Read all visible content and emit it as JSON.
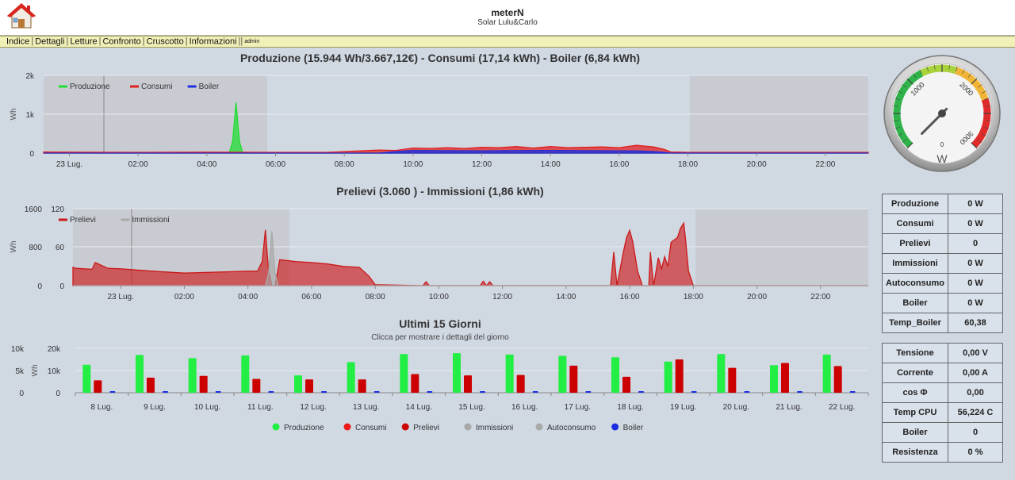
{
  "header": {
    "title": "meterN",
    "subtitle": "Solar Lulu&Carlo"
  },
  "menu": {
    "items": [
      "Indice",
      "Dettagli",
      "Letture",
      "Confronto",
      "Cruscotto",
      "Informazioni"
    ],
    "admin": "admin"
  },
  "chart1": {
    "title": "Produzione (15.944 Wh/3.667,12€) - Consumi (17,14 kWh) - Boiler (6,84 kWh)",
    "ylabel": "Wh",
    "yticks": [
      "2k",
      "1k",
      "0"
    ],
    "xticks": [
      "23 Lug.",
      "02:00",
      "04:00",
      "06:00",
      "08:00",
      "10:00",
      "12:00",
      "14:00",
      "16:00",
      "18:00",
      "20:00",
      "22:00"
    ],
    "legend": [
      {
        "name": "Produzione",
        "color": "#22dd33"
      },
      {
        "name": "Consumi",
        "color": "#e02020"
      },
      {
        "name": "Boiler",
        "color": "#2030e0"
      }
    ]
  },
  "chart2": {
    "title": "Prelievi (3.060 ) - Immissioni (1,86 kWh)",
    "ylabel": "Wh",
    "yticks_left": [
      "1600",
      "800",
      "0"
    ],
    "yticks_right": [
      "120",
      "60",
      "0"
    ],
    "xticks": [
      "23 Lug.",
      "02:00",
      "04:00",
      "06:00",
      "08:00",
      "10:00",
      "12:00",
      "14:00",
      "16:00",
      "18:00",
      "20:00",
      "22:00"
    ],
    "legend": [
      {
        "name": "Prelievi",
        "color": "#cc1a1a"
      },
      {
        "name": "Immissioni",
        "color": "#a8a8a8"
      }
    ]
  },
  "chart3": {
    "title": "Ultimi 15 Giorni",
    "subtitle": "Clicca per mostrare i dettagli del giorno",
    "ylabel": "Wh",
    "yticks_left": [
      "10k",
      "5k",
      "0"
    ],
    "yticks_right": [
      "20k",
      "10k",
      "0"
    ],
    "legend": [
      {
        "name": "Produzione",
        "color": "#22ee44"
      },
      {
        "name": "Consumi",
        "color": "#ee1a1a"
      },
      {
        "name": "Prelievi",
        "color": "#cc0000"
      },
      {
        "name": "Immissioni",
        "color": "#a8a8a8"
      },
      {
        "name": "Autoconsumo",
        "color": "#a8a8a8"
      },
      {
        "name": "Boiler",
        "color": "#1a2ee0"
      }
    ]
  },
  "chart_data": [
    {
      "type": "area",
      "title": "Produzione (15.944 Wh/3.667,12€) - Consumi (17,14 kWh) - Boiler (6,84 kWh)",
      "ylabel": "Wh",
      "ylim": [
        0,
        2000
      ],
      "xlim": [
        -0.75,
        23.25
      ],
      "series": [
        {
          "name": "Produzione",
          "color": "#22dd33",
          "x": [
            -0.75,
            4.65,
            4.75,
            4.85,
            4.95,
            5.05,
            23.25
          ],
          "values": [
            0,
            0,
            300,
            1300,
            300,
            0,
            0
          ]
        },
        {
          "name": "Consumi",
          "color": "#e02020",
          "x": [
            -0.75,
            0,
            2,
            4,
            6,
            7.5,
            8,
            9,
            9.5,
            10,
            10.5,
            11,
            11.5,
            12,
            12.5,
            13,
            13.5,
            14,
            14.5,
            15,
            15.5,
            16,
            16.5,
            17,
            17.3,
            17.5,
            18,
            23.25
          ],
          "values": [
            30,
            25,
            20,
            25,
            20,
            20,
            40,
            80,
            70,
            130,
            120,
            140,
            120,
            150,
            140,
            170,
            130,
            170,
            140,
            150,
            160,
            140,
            200,
            160,
            100,
            30,
            20,
            20
          ]
        },
        {
          "name": "Boiler",
          "color": "#2030e0",
          "x": [
            -0.75,
            9,
            9.5,
            10,
            12,
            14,
            16,
            16.5,
            17,
            17.3,
            17.5,
            23.25
          ],
          "values": [
            0,
            0,
            40,
            70,
            60,
            70,
            60,
            60,
            40,
            20,
            0,
            0
          ]
        }
      ],
      "xticks": [
        "23 Lug.",
        "02:00",
        "04:00",
        "06:00",
        "08:00",
        "10:00",
        "12:00",
        "14:00",
        "16:00",
        "18:00",
        "20:00",
        "22:00"
      ]
    },
    {
      "type": "area",
      "title": "Prelievi (3.060 ) - Immissioni (1,86 kWh)",
      "ylabel": "Wh",
      "ylim": [
        0,
        1600
      ],
      "ylim_right": [
        0,
        120
      ],
      "xlim": [
        -1.5,
        23.5
      ],
      "series": [
        {
          "name": "Prelievi",
          "color": "#cc1a1a",
          "x": [
            -1.5,
            -1.4,
            -0.9,
            -0.8,
            -0.4,
            0,
            1,
            2,
            3,
            4,
            4.3,
            4.45,
            4.55,
            4.65,
            4.75,
            4.85,
            5,
            5.5,
            6,
            6.5,
            7,
            7.5,
            7.8,
            8,
            9.5,
            9.6,
            9.7,
            11.3,
            11.4,
            11.5,
            11.6,
            11.7,
            12.5,
            15.4,
            15.5,
            15.6,
            15.8,
            15.9,
            16,
            16.1,
            16.25,
            16.4,
            16.6,
            16.65,
            16.75,
            16.9,
            17,
            17.1,
            17.2,
            17.3,
            17.5,
            17.6,
            17.7,
            17.75,
            17.85,
            18,
            18.1,
            23.5
          ],
          "values": [
            380,
            360,
            340,
            480,
            360,
            350,
            300,
            260,
            280,
            300,
            300,
            500,
            1160,
            300,
            0,
            0,
            540,
            500,
            480,
            450,
            400,
            380,
            200,
            20,
            0,
            80,
            0,
            0,
            90,
            0,
            80,
            0,
            0,
            0,
            700,
            0,
            700,
            1000,
            1150,
            900,
            300,
            0,
            0,
            700,
            0,
            580,
            350,
            600,
            400,
            900,
            1000,
            1200,
            1300,
            1000,
            300,
            0,
            0,
            0
          ]
        },
        {
          "name": "Immissioni",
          "color": "#a8a8a8",
          "x": [
            -1.5,
            4.55,
            4.65,
            4.75,
            4.85,
            4.95,
            23.5
          ],
          "values": [
            0,
            0,
            20,
            85,
            20,
            0,
            0
          ]
        }
      ],
      "xticks": [
        "23 Lug.",
        "02:00",
        "04:00",
        "06:00",
        "08:00",
        "10:00",
        "12:00",
        "14:00",
        "16:00",
        "18:00",
        "20:00",
        "22:00"
      ]
    },
    {
      "type": "bar",
      "title": "Ultimi 15 Giorni",
      "ylabel": "Wh",
      "ylim": [
        0,
        10000
      ],
      "ylim_right": [
        0,
        20000
      ],
      "categories": [
        "8 Lug.",
        "9 Lug.",
        "10 Lug.",
        "11 Lug.",
        "12 Lug.",
        "13 Lug.",
        "14 Lug.",
        "15 Lug.",
        "16 Lug.",
        "17 Lug.",
        "18 Lug.",
        "19 Lug.",
        "20 Lug.",
        "21 Lug.",
        "22 Lug."
      ],
      "series": [
        {
          "name": "Produzione",
          "color": "#22ee44",
          "values": [
            6300,
            8500,
            7800,
            8400,
            3900,
            6900,
            8700,
            8900,
            8600,
            8300,
            8000,
            7000,
            8700,
            6200,
            8600
          ]
        },
        {
          "name": "Consumi",
          "color": "#ee1a1a",
          "values": [
            0,
            0,
            0,
            0,
            0,
            0,
            0,
            0,
            0,
            0,
            0,
            0,
            0,
            0,
            0
          ]
        },
        {
          "name": "Prelievi",
          "color": "#cc0000",
          "values": [
            2800,
            3400,
            3800,
            3100,
            3000,
            3000,
            4200,
            3900,
            4000,
            6100,
            3600,
            7500,
            5600,
            6700,
            6000
          ]
        },
        {
          "name": "Immissioni",
          "color": "#a8a8a8",
          "values": [
            0,
            0,
            0,
            0,
            0,
            0,
            0,
            0,
            0,
            0,
            0,
            0,
            0,
            0,
            0
          ]
        },
        {
          "name": "Autoconsumo",
          "color": "#a8a8a8",
          "values": [
            0,
            0,
            0,
            0,
            0,
            0,
            0,
            0,
            0,
            0,
            0,
            0,
            0,
            0,
            0
          ]
        },
        {
          "name": "Boiler",
          "color": "#1a2ee0",
          "values": [
            100,
            100,
            100,
            100,
            100,
            100,
            100,
            100,
            100,
            100,
            100,
            100,
            100,
            100,
            100
          ]
        }
      ]
    }
  ],
  "gauge": {
    "value": 0,
    "min": 0,
    "max": 3000,
    "labels": [
      "1000",
      "2000",
      "3000"
    ],
    "zero_label": "0",
    "unit": "W"
  },
  "info_table1": [
    {
      "label": "Produzione",
      "value": "0 W"
    },
    {
      "label": "Consumi",
      "value": "0 W"
    },
    {
      "label": "Prelievi",
      "value": "0"
    },
    {
      "label": "Immissioni",
      "value": "0 W"
    },
    {
      "label": "Autoconsumo",
      "value": "0 W"
    },
    {
      "label": "Boiler",
      "value": "0 W"
    },
    {
      "label": "Temp_Boiler",
      "value": "60,38"
    }
  ],
  "info_table2": [
    {
      "label": "Tensione",
      "value": "0,00 V"
    },
    {
      "label": "Corrente",
      "value": "0,00 A"
    },
    {
      "label": "cos Φ",
      "value": "0,00"
    },
    {
      "label": "Temp CPU",
      "value": "56,224 C"
    },
    {
      "label": "Boiler",
      "value": "0"
    },
    {
      "label": "Resistenza",
      "value": "0 %"
    }
  ]
}
